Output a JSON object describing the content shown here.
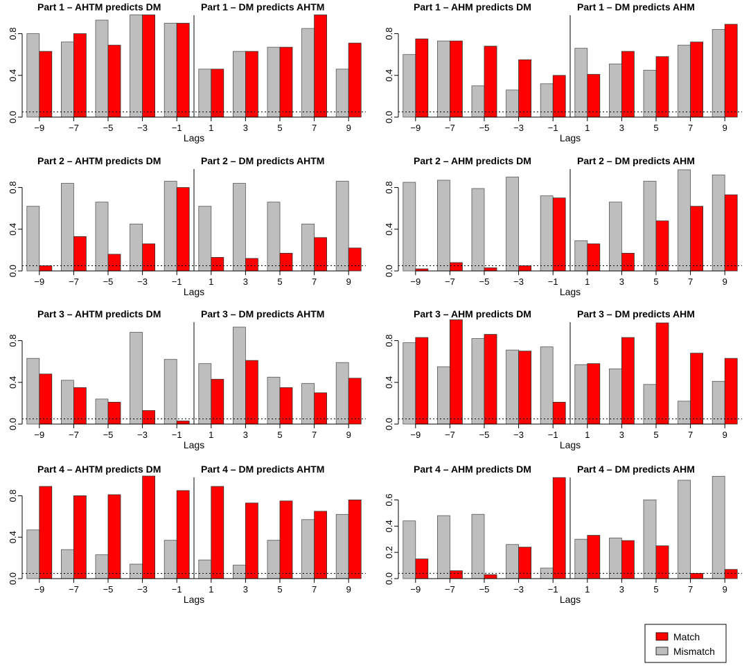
{
  "colors": {
    "match": "#ff0000",
    "mismatch": "#bebebe"
  },
  "legend": {
    "match_label": "Match",
    "mismatch_label": "Mismatch",
    "position": "bottom-right"
  },
  "chart_data": [
    {
      "type": "bar",
      "panel": "Part 1 AHTM",
      "title_left": "Part 1 – AHTM predicts DM",
      "title_right": "Part 1 –  DM predicts AHTM",
      "xlabel": "Lags",
      "categories": [
        "−9",
        "−7",
        "−5",
        "−3",
        "−1",
        "1",
        "3",
        "5",
        "7",
        "9"
      ],
      "ylim": [
        0,
        0.95
      ],
      "yticks": [
        "0.0",
        "0.4",
        "0.8"
      ],
      "threshold": 0.05,
      "series": [
        {
          "name": "Mismatch",
          "values": [
            0.8,
            0.72,
            0.93,
            0.98,
            0.9,
            0.46,
            0.63,
            0.67,
            0.85,
            0.46
          ]
        },
        {
          "name": "Match",
          "values": [
            0.63,
            0.8,
            0.69,
            0.98,
            0.9,
            0.46,
            0.63,
            0.67,
            0.98,
            0.71
          ]
        }
      ]
    },
    {
      "type": "bar",
      "panel": "Part 1 AHM",
      "title_left": "Part 1 – AHM predicts DM",
      "title_right": "Part 1 – DM predicts AHM",
      "xlabel": "Lags",
      "categories": [
        "−9",
        "−7",
        "−5",
        "−3",
        "−1",
        "1",
        "3",
        "5",
        "7",
        "9"
      ],
      "ylim": [
        0,
        0.95
      ],
      "yticks": [
        "0.0",
        "0.4",
        "0.8"
      ],
      "threshold": 0.05,
      "series": [
        {
          "name": "Mismatch",
          "values": [
            0.6,
            0.73,
            0.3,
            0.26,
            0.32,
            0.66,
            0.51,
            0.45,
            0.69,
            0.84
          ]
        },
        {
          "name": "Match",
          "values": [
            0.75,
            0.73,
            0.68,
            0.55,
            0.4,
            0.41,
            0.63,
            0.58,
            0.72,
            0.89
          ]
        }
      ]
    },
    {
      "type": "bar",
      "panel": "Part 2 AHTM",
      "title_left": "Part 2 – AHTM predicts DM",
      "title_right": "Part 2 –  DM predicts AHTM",
      "xlabel": "Lags",
      "categories": [
        "−9",
        "−7",
        "−5",
        "−3",
        "−1",
        "1",
        "3",
        "5",
        "7",
        "9"
      ],
      "ylim": [
        0,
        0.95
      ],
      "yticks": [
        "0.0",
        "0.4",
        "0.8"
      ],
      "threshold": 0.05,
      "series": [
        {
          "name": "Mismatch",
          "values": [
            0.62,
            0.84,
            0.66,
            0.45,
            0.86,
            0.62,
            0.84,
            0.66,
            0.45,
            0.86
          ]
        },
        {
          "name": "Match",
          "values": [
            0.05,
            0.33,
            0.16,
            0.26,
            0.8,
            0.13,
            0.12,
            0.17,
            0.32,
            0.22
          ]
        }
      ]
    },
    {
      "type": "bar",
      "panel": "Part 2 AHM",
      "title_left": "Part 2 – AHM predicts DM",
      "title_right": "Part 2 – DM predicts AHM",
      "xlabel": "Lags",
      "categories": [
        "−9",
        "−7",
        "−5",
        "−3",
        "−1",
        "1",
        "3",
        "5",
        "7",
        "9"
      ],
      "ylim": [
        0,
        0.95
      ],
      "yticks": [
        "0.0",
        "0.4",
        "0.8"
      ],
      "threshold": 0.05,
      "series": [
        {
          "name": "Mismatch",
          "values": [
            0.85,
            0.87,
            0.79,
            0.9,
            0.72,
            0.29,
            0.66,
            0.86,
            0.97,
            0.92
          ]
        },
        {
          "name": "Match",
          "values": [
            0.02,
            0.08,
            0.03,
            0.05,
            0.7,
            0.26,
            0.17,
            0.48,
            0.62,
            0.73
          ]
        }
      ]
    },
    {
      "type": "bar",
      "panel": "Part 3 AHTM",
      "title_left": "Part 3 – AHTM predicts DM",
      "title_right": "Part 3 –  DM predicts AHTM",
      "xlabel": "Lags",
      "categories": [
        "−9",
        "−7",
        "−5",
        "−3",
        "−1",
        "1",
        "3",
        "5",
        "7",
        "9"
      ],
      "ylim": [
        0,
        0.95
      ],
      "yticks": [
        "0.0",
        "0.4",
        "0.8"
      ],
      "threshold": 0.05,
      "series": [
        {
          "name": "Mismatch",
          "values": [
            0.63,
            0.42,
            0.24,
            0.88,
            0.62,
            0.58,
            0.93,
            0.45,
            0.39,
            0.59
          ]
        },
        {
          "name": "Match",
          "values": [
            0.48,
            0.35,
            0.21,
            0.13,
            0.03,
            0.43,
            0.61,
            0.35,
            0.3,
            0.44
          ]
        }
      ]
    },
    {
      "type": "bar",
      "panel": "Part 3 AHM",
      "title_left": "Part 3 – AHM predicts DM",
      "title_right": "Part 3 – DM predicts AHM",
      "xlabel": "Lags",
      "categories": [
        "−9",
        "−7",
        "−5",
        "−3",
        "−1",
        "1",
        "3",
        "5",
        "7",
        "9"
      ],
      "ylim": [
        0,
        0.95
      ],
      "yticks": [
        "0.0",
        "0.4",
        "0.8"
      ],
      "threshold": 0.05,
      "series": [
        {
          "name": "Mismatch",
          "values": [
            0.78,
            0.55,
            0.82,
            0.71,
            0.74,
            0.57,
            0.53,
            0.38,
            0.22,
            0.41
          ]
        },
        {
          "name": "Match",
          "values": [
            0.83,
            1.0,
            0.86,
            0.7,
            0.21,
            0.58,
            0.83,
            0.97,
            0.68,
            0.63
          ]
        }
      ]
    },
    {
      "type": "bar",
      "panel": "Part 4 AHTM",
      "title_left": "Part 4 – AHTM predicts DM",
      "title_right": "Part 4 –  DM predicts AHTM",
      "xlabel": "Lags",
      "categories": [
        "−9",
        "−7",
        "−5",
        "−3",
        "−1",
        "1",
        "3",
        "5",
        "7",
        "9"
      ],
      "ylim": [
        0,
        0.95
      ],
      "yticks": [
        "0.0",
        "0.4",
        "0.8"
      ],
      "threshold": 0.05,
      "series": [
        {
          "name": "Mismatch",
          "values": [
            0.47,
            0.28,
            0.23,
            0.14,
            0.37,
            0.18,
            0.13,
            0.37,
            0.57,
            0.62
          ]
        },
        {
          "name": "Match",
          "values": [
            0.89,
            0.8,
            0.81,
            0.99,
            0.85,
            0.89,
            0.73,
            0.75,
            0.65,
            0.76
          ]
        }
      ]
    },
    {
      "type": "bar",
      "panel": "Part 4 AHM",
      "title_left": "Part 4 – AHM predicts DM",
      "title_right": "Part 4 – DM predicts AHM",
      "xlabel": "Lags",
      "categories": [
        "−9",
        "−7",
        "−5",
        "−3",
        "−1",
        "1",
        "3",
        "5",
        "7",
        "9"
      ],
      "ylim": [
        0,
        0.75
      ],
      "yticks": [
        "0.0",
        "0.2",
        "0.4",
        "0.6"
      ],
      "threshold": 0.04,
      "series": [
        {
          "name": "Mismatch",
          "values": [
            0.44,
            0.48,
            0.49,
            0.26,
            0.08,
            0.3,
            0.31,
            0.6,
            0.75,
            0.78
          ]
        },
        {
          "name": "Match",
          "values": [
            0.15,
            0.06,
            0.03,
            0.24,
            0.77,
            0.33,
            0.29,
            0.25,
            0.04,
            0.07
          ]
        }
      ]
    }
  ]
}
